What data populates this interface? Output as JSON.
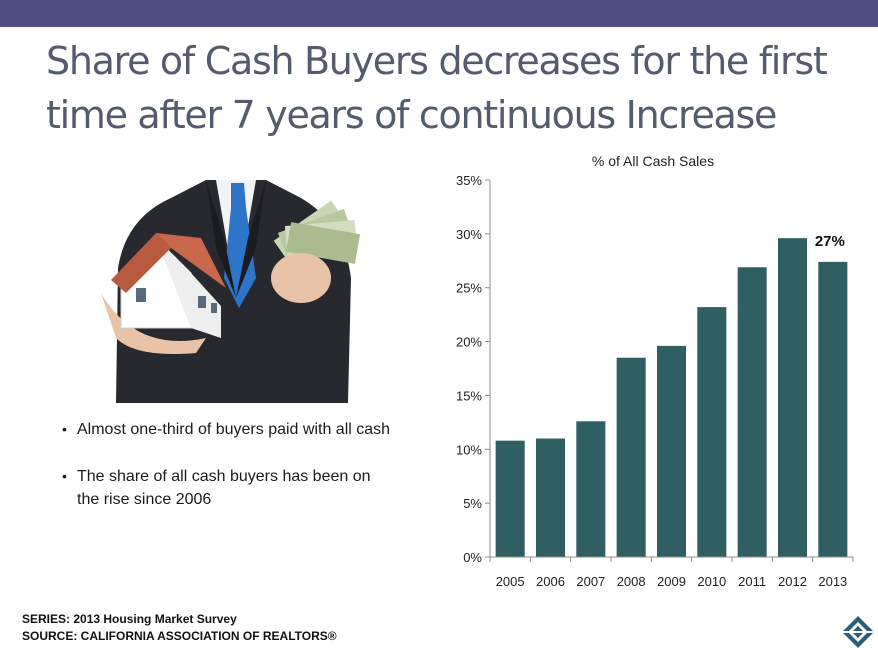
{
  "slide": {
    "title": "Share of Cash Buyers decreases for the first time after 7 years of continuous Increase",
    "bullets": [
      "Almost one-third of buyers paid with all cash",
      "The share of all cash buyers has been on the rise since 2006"
    ],
    "footer": {
      "series": "SERIES: 2013 Housing Market Survey",
      "source": "SOURCE:  CALIFORNIA ASSOCIATION OF REALTORS®"
    },
    "colors": {
      "top_bar": "#514f86",
      "title": "#535b6d",
      "bar": "#2f5e63"
    }
  },
  "chart_data": {
    "type": "bar",
    "title": "% of All Cash Sales",
    "categories": [
      "2005",
      "2006",
      "2007",
      "2008",
      "2009",
      "2010",
      "2011",
      "2012",
      "2013"
    ],
    "values": [
      10.8,
      11.0,
      12.6,
      18.5,
      19.6,
      23.2,
      26.9,
      29.6,
      27.4
    ],
    "ylim": [
      0,
      35
    ],
    "yticks": [
      "0%",
      "5%",
      "10%",
      "15%",
      "20%",
      "25%",
      "30%",
      "35%"
    ],
    "annotation": {
      "category": "2013",
      "label": "27%"
    },
    "xlabel": "",
    "ylabel": "",
    "grid": false,
    "legend": "none"
  }
}
